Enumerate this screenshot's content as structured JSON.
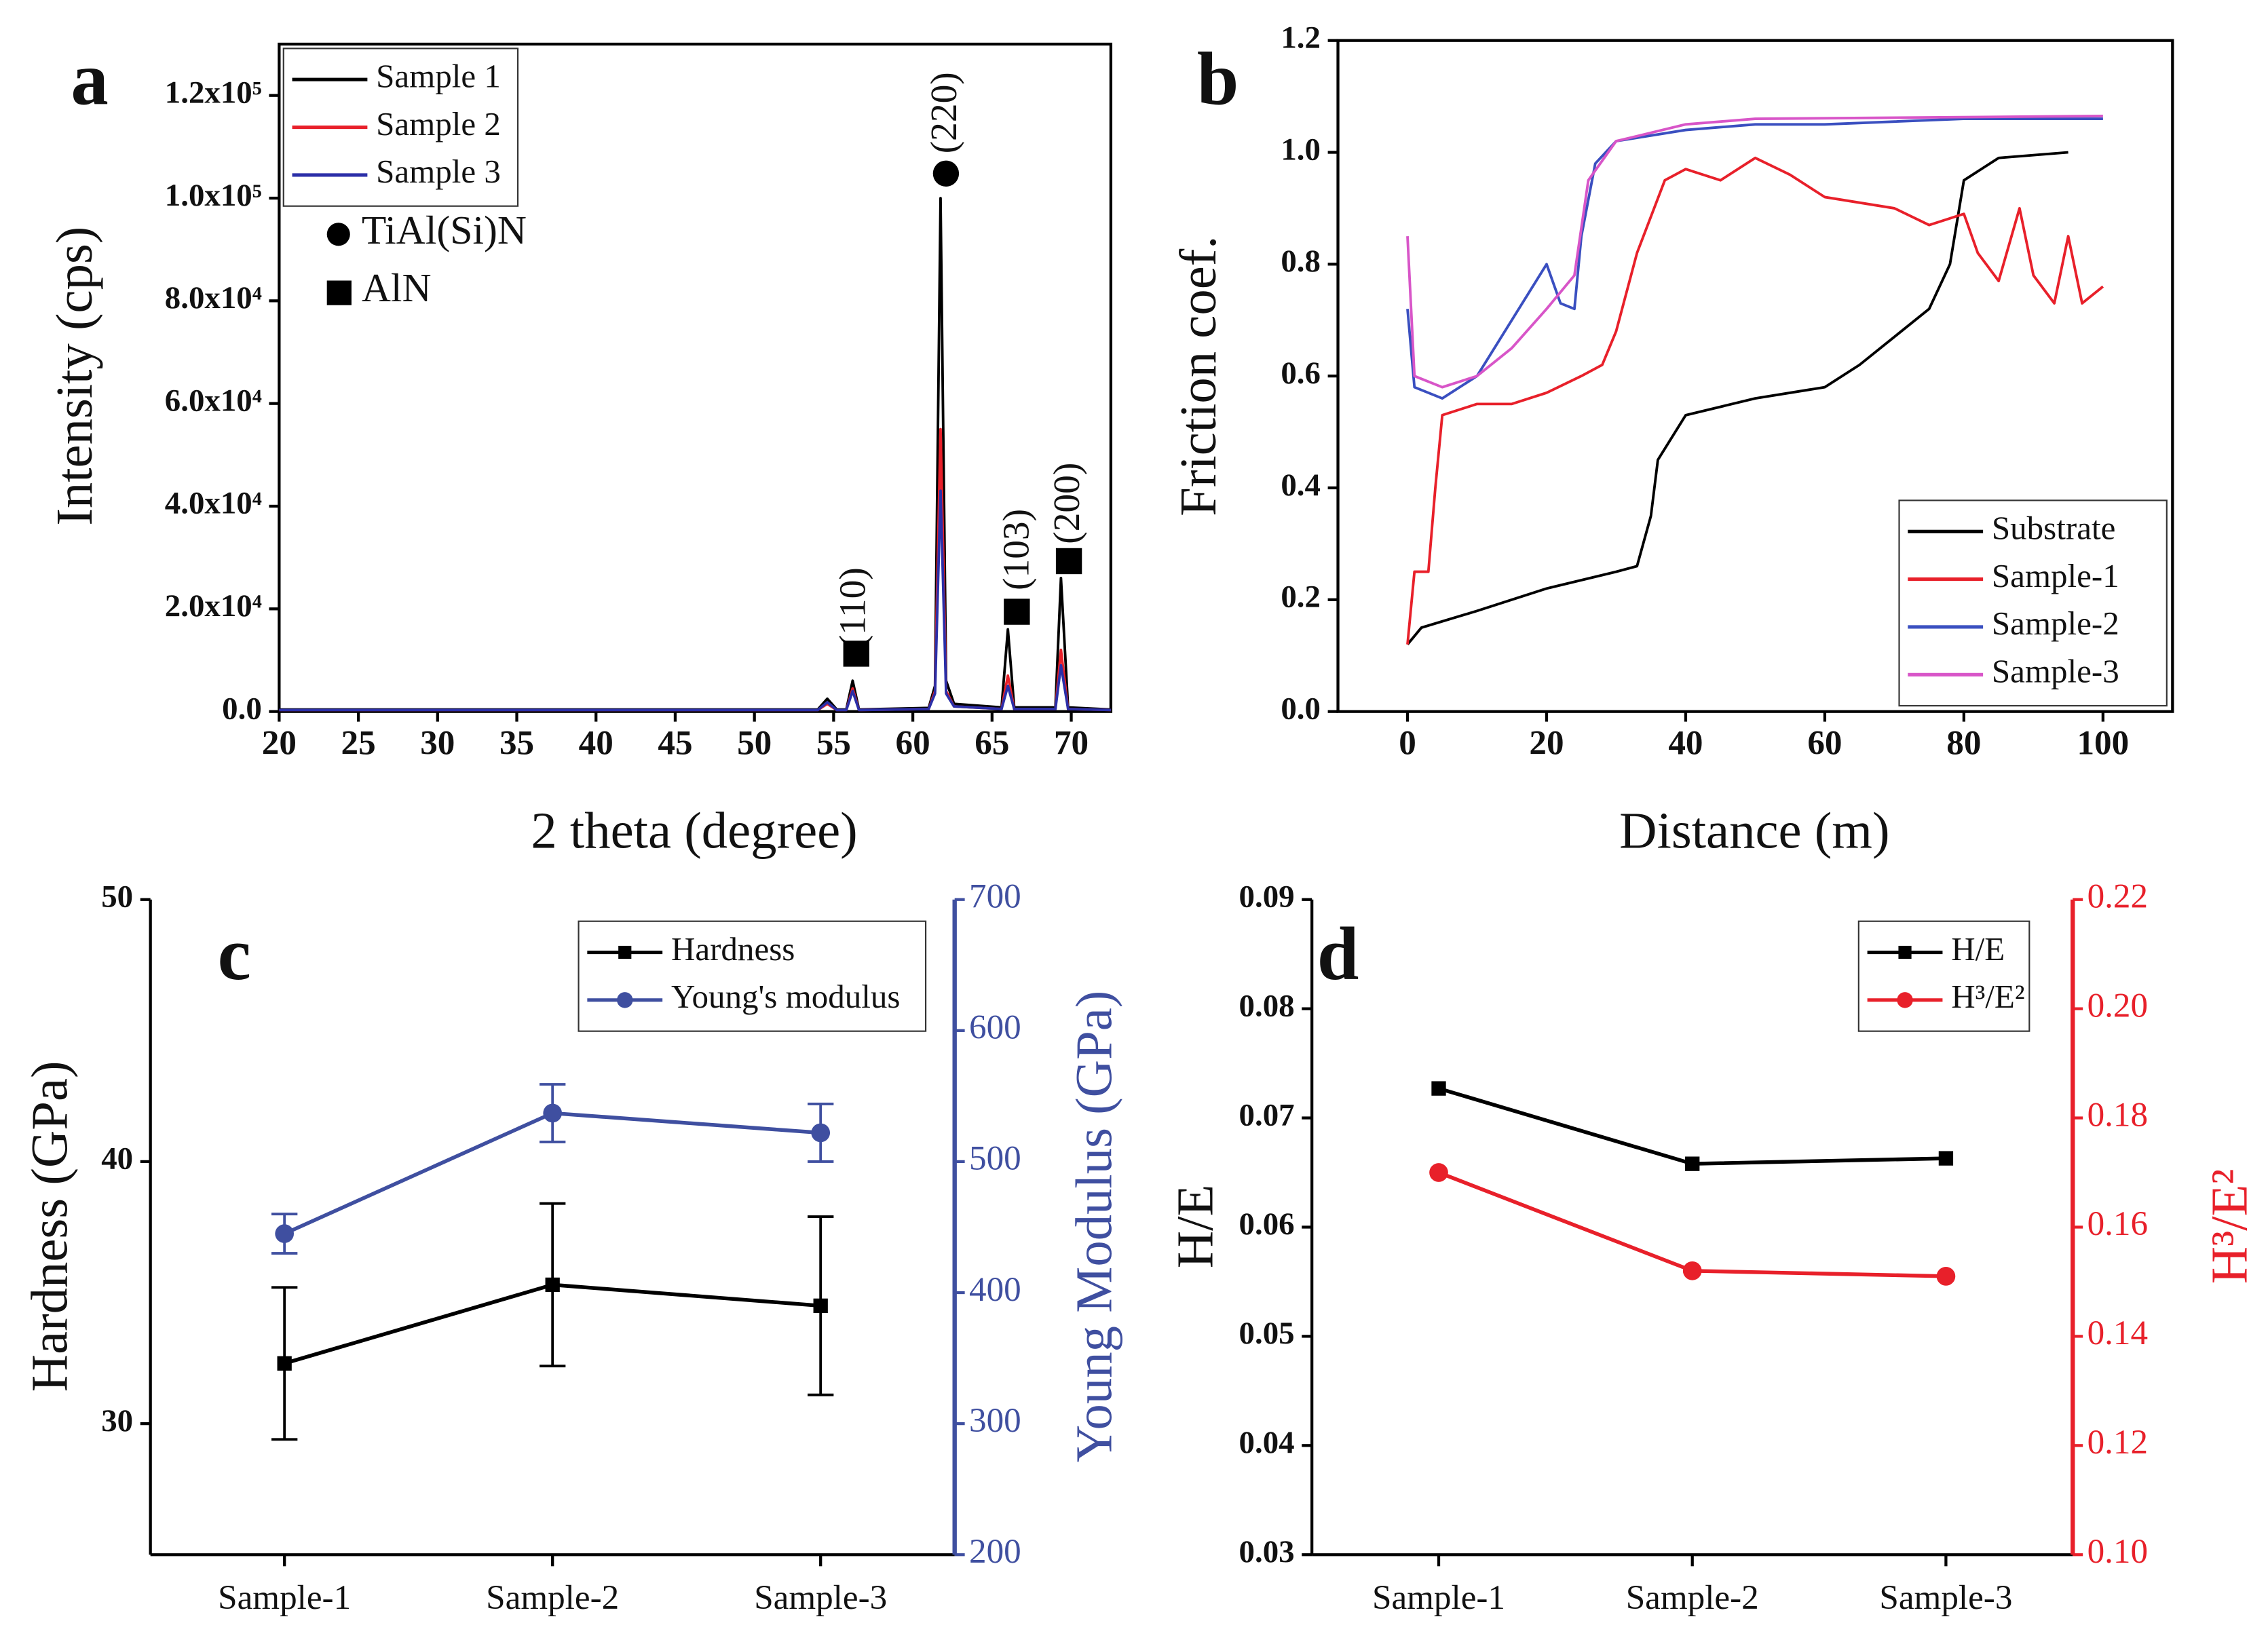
{
  "chart_data": [
    {
      "type": "line",
      "panel_label": "a",
      "x_label": "2 theta (degree)",
      "y_label": "Intensity (cps)",
      "xlim": [
        20,
        72.5
      ],
      "xticks": [
        20,
        25,
        30,
        35,
        40,
        45,
        50,
        55,
        60,
        65,
        70
      ],
      "ylim": [
        0,
        130000
      ],
      "yticks": [
        {
          "value": 0,
          "label": "0.0"
        },
        {
          "value": 20000,
          "label": "2.0x10⁴"
        },
        {
          "value": 40000,
          "label": "4.0x10⁴"
        },
        {
          "value": 60000,
          "label": "6.0x10⁴"
        },
        {
          "value": 80000,
          "label": "8.0x10⁴"
        },
        {
          "value": 100000,
          "label": "1.0x10⁵"
        },
        {
          "value": 120000,
          "label": "1.2x10⁵"
        }
      ],
      "legend": "upper left",
      "x": [
        20,
        54,
        54.6,
        55.2,
        55.8,
        56.2,
        56.6,
        61,
        61.4,
        61.75,
        62.1,
        62.6,
        65.6,
        66,
        66.4,
        69,
        69.35,
        69.8,
        72.5
      ],
      "series": [
        {
          "name": "Sample 1",
          "color": "#000000",
          "values": [
            400,
            400,
            2500,
            400,
            400,
            6000,
            400,
            700,
            5000,
            100000,
            6000,
            1500,
            800,
            16000,
            800,
            800,
            26000,
            800,
            400
          ]
        },
        {
          "name": "Sample 2",
          "color": "#e8202a",
          "values": [
            300,
            300,
            1500,
            300,
            300,
            4500,
            300,
            500,
            4000,
            55000,
            4000,
            1000,
            500,
            7000,
            500,
            500,
            12000,
            500,
            300
          ]
        },
        {
          "name": "Sample 3",
          "color": "#2b2fa8",
          "values": [
            300,
            300,
            1800,
            300,
            300,
            4000,
            300,
            500,
            3500,
            43000,
            3500,
            1000,
            500,
            5000,
            500,
            500,
            9000,
            500,
            300
          ]
        }
      ],
      "annotations": [
        "(110)",
        "(220)",
        "(103)",
        "(200)",
        "TiAl(Si)N",
        "AlN"
      ]
    },
    {
      "type": "line",
      "panel_label": "b",
      "x_label": "Distance (m)",
      "y_label": "Friction coef.",
      "xlim": [
        -10,
        110
      ],
      "xticks": [
        0,
        20,
        40,
        60,
        80,
        100
      ],
      "ylim": [
        0,
        1.2
      ],
      "yticks": [
        {
          "value": 0,
          "label": "0.0"
        },
        0.2,
        0.4,
        0.6,
        0.8,
        {
          "value": 1,
          "label": "1.0"
        },
        1.2
      ],
      "legend": "lower right",
      "series": [
        {
          "name": "Substrate",
          "color": "#000000",
          "x": [
            0,
            2,
            10,
            20,
            30,
            33,
            35,
            36,
            40,
            50,
            60,
            65,
            70,
            75,
            78,
            80,
            85,
            95
          ],
          "values": [
            0.12,
            0.15,
            0.18,
            0.22,
            0.25,
            0.26,
            0.35,
            0.45,
            0.53,
            0.56,
            0.58,
            0.62,
            0.67,
            0.72,
            0.8,
            0.95,
            0.99,
            1.0
          ]
        },
        {
          "name": "Sample-1",
          "color": "#e8202a",
          "x": [
            0,
            1,
            3,
            4,
            5,
            10,
            15,
            20,
            25,
            28,
            30,
            33,
            37,
            40,
            45,
            50,
            55,
            60,
            70,
            75,
            80,
            82,
            85,
            88,
            90,
            93,
            95,
            97,
            100
          ],
          "values": [
            0.12,
            0.25,
            0.25,
            0.4,
            0.53,
            0.55,
            0.55,
            0.57,
            0.6,
            0.62,
            0.68,
            0.82,
            0.95,
            0.97,
            0.95,
            0.99,
            0.96,
            0.92,
            0.9,
            0.87,
            0.89,
            0.82,
            0.77,
            0.9,
            0.78,
            0.73,
            0.85,
            0.73,
            0.76
          ]
        },
        {
          "name": "Sample-2",
          "color": "#3a4fc0",
          "x": [
            0,
            1,
            5,
            10,
            15,
            20,
            22,
            24,
            25,
            27,
            30,
            40,
            50,
            60,
            80,
            100
          ],
          "values": [
            0.72,
            0.58,
            0.56,
            0.6,
            0.7,
            0.8,
            0.73,
            0.72,
            0.85,
            0.98,
            1.02,
            1.04,
            1.05,
            1.05,
            1.06,
            1.06
          ]
        },
        {
          "name": "Sample-3",
          "color": "#d855c8",
          "x": [
            0,
            1,
            5,
            10,
            15,
            20,
            24,
            26,
            30,
            40,
            50,
            100
          ],
          "values": [
            0.85,
            0.6,
            0.58,
            0.6,
            0.65,
            0.72,
            0.78,
            0.95,
            1.02,
            1.05,
            1.06,
            1.065
          ]
        }
      ]
    },
    {
      "type": "line",
      "panel_label": "c",
      "y_label": "Hardness (GPa)",
      "y2_label": "Young Modulus (GPa)",
      "y2_color": "#3f4fa0",
      "categories": [
        "Sample-1",
        "Sample-2",
        "Sample-3"
      ],
      "ylim": [
        25,
        50
      ],
      "yticks": [
        30,
        40,
        50
      ],
      "y2lim": [
        200,
        700
      ],
      "y2ticks": [
        200,
        300,
        400,
        500,
        600,
        700
      ],
      "legend": "upper right",
      "series": [
        {
          "name": "Hardness",
          "color": "#000000",
          "marker": "square",
          "values": [
            32.3,
            35.3,
            34.5
          ],
          "errors": [
            2.9,
            3.1,
            3.4
          ]
        },
        {
          "name": "Young's modulus",
          "color": "#3f4fa0",
          "marker": "circle",
          "axis": "y2",
          "values": [
            445,
            537,
            522
          ],
          "errors": [
            15,
            22,
            22
          ]
        }
      ]
    },
    {
      "type": "line",
      "panel_label": "d",
      "y_label": "H/E",
      "y2_label": "H³/E²",
      "y2_color": "#e8202a",
      "categories": [
        "Sample-1",
        "Sample-2",
        "Sample-3"
      ],
      "ylim": [
        0.03,
        0.09
      ],
      "yticks": [
        0.03,
        0.04,
        0.05,
        0.06,
        0.07,
        0.08,
        0.09
      ],
      "y2lim": [
        0.1,
        0.22
      ],
      "y2ticks": [
        {
          "value": 0.1,
          "label": "0.10"
        },
        0.12,
        0.14,
        0.16,
        0.18,
        {
          "value": 0.2,
          "label": "0.20"
        },
        0.22
      ],
      "legend": "upper right",
      "series": [
        {
          "name": "H/E",
          "color": "#000000",
          "marker": "square",
          "values": [
            0.0727,
            0.0658,
            0.0663
          ]
        },
        {
          "name": "H³/E²",
          "color": "#e8202a",
          "marker": "circle",
          "axis": "y2",
          "values": [
            0.17,
            0.152,
            0.151
          ]
        }
      ]
    }
  ]
}
